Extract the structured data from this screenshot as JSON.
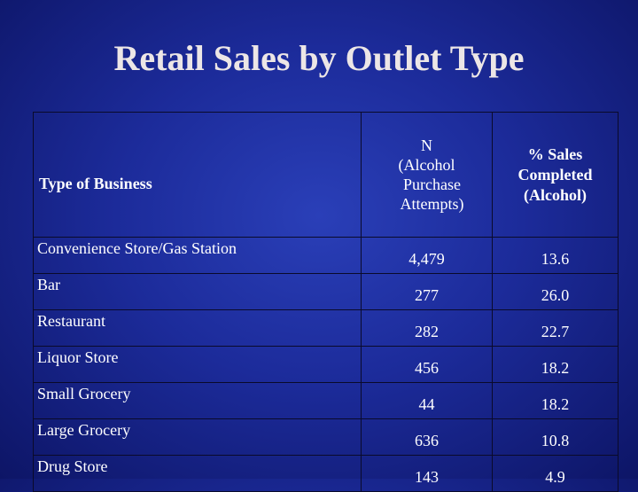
{
  "slide": {
    "title": "Retail Sales by Outlet Type"
  },
  "table": {
    "headers": {
      "business": "Type of Business",
      "n_line1": "N",
      "n_line2": "(Alcohol",
      "n_line3": "Purchase",
      "n_line4": "Attempts)",
      "pct_line1": "% Sales",
      "pct_line2": "Completed",
      "pct_line3": "(Alcohol)"
    },
    "rows": [
      {
        "business": "Convenience Store/Gas Station",
        "n": "4,479",
        "pct": "13.6"
      },
      {
        "business": "Bar",
        "n": "277",
        "pct": "26.0"
      },
      {
        "business": "Restaurant",
        "n": "282",
        "pct": "22.7"
      },
      {
        "business": "Liquor Store",
        "n": "456",
        "pct": "18.2"
      },
      {
        "business": "Small Grocery",
        "n": "44",
        "pct": "18.2"
      },
      {
        "business": "Large Grocery",
        "n": "636",
        "pct": "10.8"
      },
      {
        "business": "Drug Store",
        "n": "143",
        "pct": "4.9"
      }
    ]
  },
  "colors": {
    "background": "#1c2b9a",
    "text": "#ffffff"
  }
}
